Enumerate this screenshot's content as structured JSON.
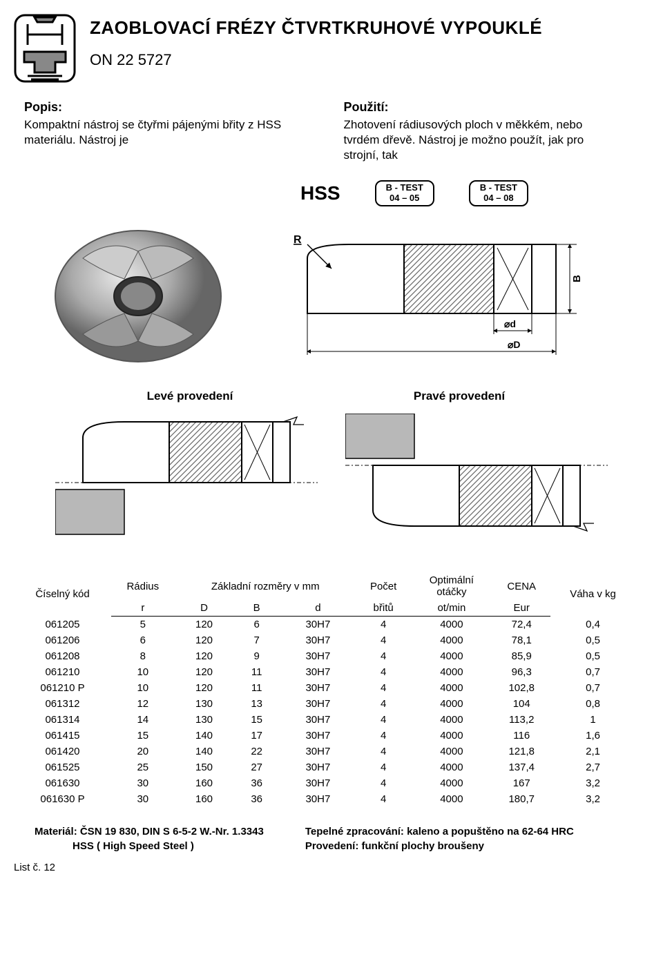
{
  "header": {
    "title": "ZAOBLOVACÍ FRÉZY ČTVRTKRUHOVÉ VYPOUKLÉ",
    "subtitle": "ON 22 5727"
  },
  "popis": {
    "left_head": "Popis:",
    "left_text": "Kompaktní nástroj se čtyřmi pájenými břity z HSS materiálu. Nástroj je",
    "right_head": "Použití:",
    "right_text": "Zhotovení rádiusových ploch v měkkém, nebo tvrdém dřevě. Nástroj je možno použít, jak pro strojní, tak"
  },
  "hss": {
    "label": "HSS",
    "box1_l1": "B - TEST",
    "box1_l2": "04 – 05",
    "box2_l1": "B - TEST",
    "box2_l2": "04 – 08"
  },
  "diagram": {
    "R": "R",
    "B": "B",
    "d": "⌀d",
    "D": "⌀D"
  },
  "provedeni": {
    "left": "Levé provedení",
    "right": "Pravé provedení"
  },
  "table": {
    "headers": {
      "code": "Číselný kód",
      "radius": "Rádius",
      "dims": "Základní rozměry v mm",
      "count": "Počet",
      "opt": "Optimální",
      "opt2": "otáčky",
      "cena": "CENA",
      "weight": "Váha v kg",
      "r": "r",
      "D": "D",
      "B": "B",
      "d": "d",
      "britu": "břitů",
      "otmin": "ot/min",
      "eur": "Eur"
    },
    "rows": [
      {
        "code": "061205",
        "r": "5",
        "D": "120",
        "B": "6",
        "d": "30H7",
        "n": "4",
        "rpm": "4000",
        "price": "72,4",
        "w": "0,4"
      },
      {
        "code": "061206",
        "r": "6",
        "D": "120",
        "B": "7",
        "d": "30H7",
        "n": "4",
        "rpm": "4000",
        "price": "78,1",
        "w": "0,5"
      },
      {
        "code": "061208",
        "r": "8",
        "D": "120",
        "B": "9",
        "d": "30H7",
        "n": "4",
        "rpm": "4000",
        "price": "85,9",
        "w": "0,5"
      },
      {
        "code": "061210",
        "r": "10",
        "D": "120",
        "B": "11",
        "d": "30H7",
        "n": "4",
        "rpm": "4000",
        "price": "96,3",
        "w": "0,7"
      },
      {
        "code": "061210 P",
        "r": "10",
        "D": "120",
        "B": "11",
        "d": "30H7",
        "n": "4",
        "rpm": "4000",
        "price": "102,8",
        "w": "0,7"
      },
      {
        "code": "061312",
        "r": "12",
        "D": "130",
        "B": "13",
        "d": "30H7",
        "n": "4",
        "rpm": "4000",
        "price": "104",
        "w": "0,8"
      },
      {
        "code": "061314",
        "r": "14",
        "D": "130",
        "B": "15",
        "d": "30H7",
        "n": "4",
        "rpm": "4000",
        "price": "113,2",
        "w": "1"
      },
      {
        "code": "061415",
        "r": "15",
        "D": "140",
        "B": "17",
        "d": "30H7",
        "n": "4",
        "rpm": "4000",
        "price": "116",
        "w": "1,6"
      },
      {
        "code": "061420",
        "r": "20",
        "D": "140",
        "B": "22",
        "d": "30H7",
        "n": "4",
        "rpm": "4000",
        "price": "121,8",
        "w": "2,1"
      },
      {
        "code": "061525",
        "r": "25",
        "D": "150",
        "B": "27",
        "d": "30H7",
        "n": "4",
        "rpm": "4000",
        "price": "137,4",
        "w": "2,7"
      },
      {
        "code": "061630",
        "r": "30",
        "D": "160",
        "B": "36",
        "d": "30H7",
        "n": "4",
        "rpm": "4000",
        "price": "167",
        "w": "3,2"
      },
      {
        "code": "061630 P",
        "r": "30",
        "D": "160",
        "B": "36",
        "d": "30H7",
        "n": "4",
        "rpm": "4000",
        "price": "180,7",
        "w": "3,2"
      }
    ]
  },
  "footer": {
    "left1": "Materiál: ČSN 19 830, DIN S 6-5-2 W.-Nr. 1.3343",
    "left2": "HSS ( High Speed Steel )",
    "right1": "Tepelné zpracování: kaleno a popuštěno na 62-64 HRC",
    "right2": "Provedení: funkční plochy broušeny"
  },
  "page_footer": "List č. 12",
  "style": {
    "hatch": "#888888",
    "gray": "#b8b8b8",
    "line": "#000000"
  }
}
